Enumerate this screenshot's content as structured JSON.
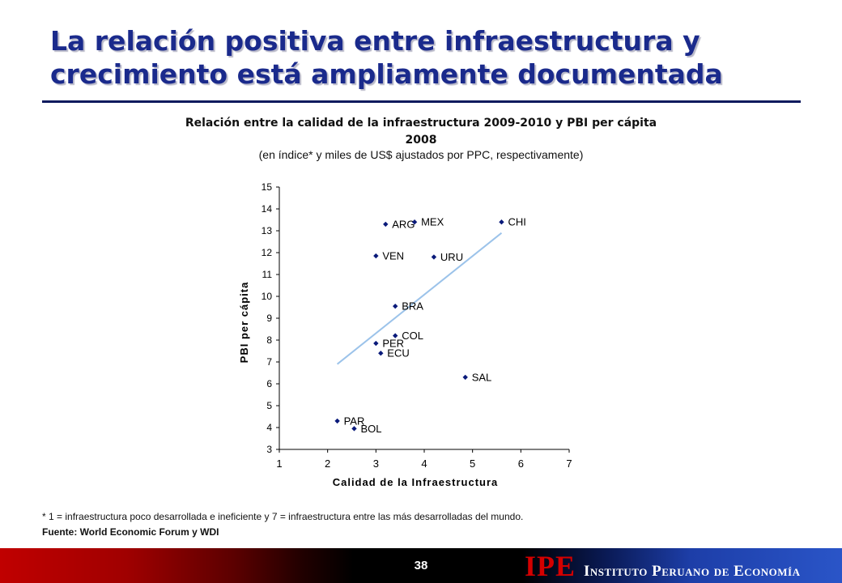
{
  "slide": {
    "title": "La relación positiva entre infraestructura y crecimiento está ampliamente documentada",
    "footnote": "* 1 = infraestructura poco desarrollada e ineficiente y 7 = infraestructura entre las más desarrolladas del mundo.",
    "source": "Fuente: World Economic Forum y WDI",
    "page_number": "38",
    "brand_logo": "IPE",
    "brand_name": "Instituto Peruano de Economía"
  },
  "chart_data": {
    "type": "scatter",
    "title": "Relación entre la calidad de la infraestructura 2009-2010 y PBI per cápita 2008",
    "subtitle": "(en índice* y miles de US$ ajustados por PPC, respectivamente)",
    "xlabel": "Calidad de la Infraestructura",
    "ylabel": "PBI per cápita",
    "xlim": [
      1,
      7
    ],
    "ylim": [
      3,
      15
    ],
    "xticks": [
      1,
      2,
      3,
      4,
      5,
      6,
      7
    ],
    "yticks": [
      3,
      4,
      5,
      6,
      7,
      8,
      9,
      10,
      11,
      12,
      13,
      14,
      15
    ],
    "grid": false,
    "marker_color": "#0a1a7a",
    "trendline": {
      "x": [
        2.2,
        5.6
      ],
      "y": [
        6.9,
        12.9
      ],
      "color": "#9cc3ea"
    },
    "points": [
      {
        "label": "ARG",
        "x": 3.2,
        "y": 13.3
      },
      {
        "label": "MEX",
        "x": 3.8,
        "y": 13.4
      },
      {
        "label": "CHI",
        "x": 5.6,
        "y": 13.4
      },
      {
        "label": "VEN",
        "x": 3.0,
        "y": 11.85
      },
      {
        "label": "URU",
        "x": 4.2,
        "y": 11.8
      },
      {
        "label": "BRA",
        "x": 3.4,
        "y": 9.55
      },
      {
        "label": "PER",
        "x": 3.0,
        "y": 7.85
      },
      {
        "label": "COL",
        "x": 3.4,
        "y": 8.2
      },
      {
        "label": "ECU",
        "x": 3.1,
        "y": 7.4
      },
      {
        "label": "SAL",
        "x": 4.85,
        "y": 6.3
      },
      {
        "label": "PAR",
        "x": 2.2,
        "y": 4.3
      },
      {
        "label": "BOL",
        "x": 2.55,
        "y": 3.95
      }
    ]
  }
}
